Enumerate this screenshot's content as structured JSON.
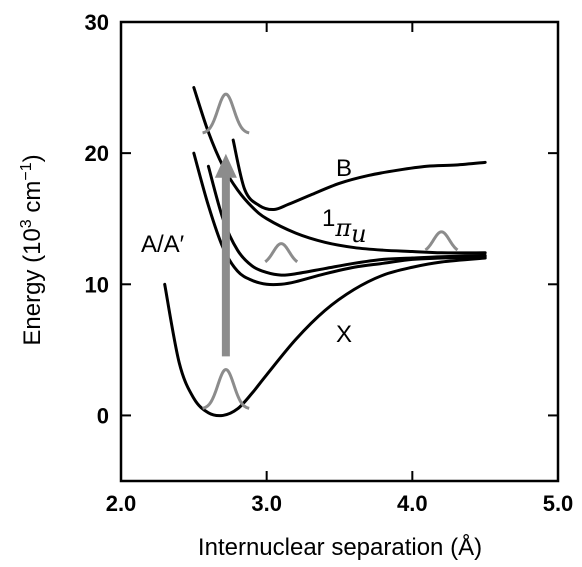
{
  "chart_data": {
    "type": "line",
    "title": "",
    "xlabel": "Internuclear separation (Å)",
    "ylabel_main": "Energy (10",
    "ylabel_exp": "3",
    "ylabel_unit": " cm",
    "ylabel_unit_exp": "−1",
    "ylabel_close": ")",
    "xlim": [
      2.0,
      5.0
    ],
    "ylim": [
      -5,
      30
    ],
    "xticks": [
      "2.0",
      "3.0",
      "4.0",
      "5.0"
    ],
    "xtick_values": [
      2.0,
      3.0,
      4.0,
      5.0
    ],
    "yticks": [
      "0",
      "10",
      "20",
      "30"
    ],
    "ytick_values": [
      0,
      10,
      20,
      30
    ],
    "grid": false,
    "series": [
      {
        "name": "X",
        "color": "#000000",
        "x": [
          2.3,
          2.4,
          2.5,
          2.6,
          2.7,
          2.8,
          2.9,
          3.0,
          3.2,
          3.4,
          3.6,
          3.8,
          4.0,
          4.2,
          4.5
        ],
        "y": [
          10.0,
          4.0,
          1.3,
          0.2,
          0.0,
          0.5,
          1.7,
          3.1,
          5.8,
          8.0,
          9.6,
          10.7,
          11.3,
          11.7,
          12.0
        ]
      },
      {
        "name": "A",
        "color": "#000000",
        "x": [
          2.5,
          2.6,
          2.7,
          2.8,
          2.9,
          3.0,
          3.1,
          3.2,
          3.4,
          3.6,
          3.8,
          4.0,
          4.2,
          4.5
        ],
        "y": [
          20.0,
          16.0,
          12.8,
          11.0,
          10.3,
          10.0,
          10.0,
          10.2,
          10.8,
          11.3,
          11.6,
          11.9,
          12.0,
          12.1
        ]
      },
      {
        "name": "A′",
        "color": "#000000",
        "x": [
          2.6,
          2.7,
          2.8,
          2.9,
          3.0,
          3.1,
          3.2,
          3.4,
          3.6,
          3.8,
          4.0,
          4.2,
          4.5
        ],
        "y": [
          19.0,
          15.0,
          12.6,
          11.4,
          10.9,
          10.7,
          10.8,
          11.2,
          11.6,
          11.9,
          12.0,
          12.1,
          12.2
        ]
      },
      {
        "name": "1πu",
        "color": "#000000",
        "x": [
          2.5,
          2.6,
          2.7,
          2.8,
          2.9,
          3.0,
          3.2,
          3.4,
          3.6,
          3.8,
          4.0,
          4.2,
          4.5
        ],
        "y": [
          25.0,
          21.6,
          19.0,
          17.2,
          15.9,
          15.0,
          13.9,
          13.2,
          12.8,
          12.6,
          12.5,
          12.4,
          12.4
        ]
      },
      {
        "name": "B",
        "color": "#000000",
        "x": [
          2.77,
          2.85,
          2.95,
          3.05,
          3.15,
          3.3,
          3.5,
          3.7,
          3.9,
          4.1,
          4.3,
          4.5
        ],
        "y": [
          21.0,
          17.2,
          16.0,
          15.7,
          16.1,
          16.8,
          17.7,
          18.3,
          18.7,
          19.0,
          19.1,
          19.3
        ]
      }
    ],
    "annotations": {
      "label_B": "B",
      "label_pi_sup": "1",
      "label_pi_main": "π",
      "label_pi_sub": "u",
      "label_A": "A/A′",
      "label_X": "X"
    },
    "overlay_color": "#8c8c8c",
    "arrow": {
      "x": 2.72,
      "y_from": 4.5,
      "y_to": 19.5
    },
    "wavepackets": [
      {
        "x_center": 2.72,
        "baseline": 0.5,
        "height": 3.0,
        "half_width": 0.32,
        "sigma": 0.055
      },
      {
        "x_center": 2.72,
        "baseline": 21.5,
        "height": 3.0,
        "half_width": 0.32,
        "sigma": 0.055
      },
      {
        "x_center": 3.1,
        "baseline": 11.5,
        "height": 1.6,
        "half_width": 0.22,
        "sigma": 0.055
      },
      {
        "x_center": 4.2,
        "baseline": 12.4,
        "height": 1.6,
        "half_width": 0.22,
        "sigma": 0.055
      }
    ]
  }
}
